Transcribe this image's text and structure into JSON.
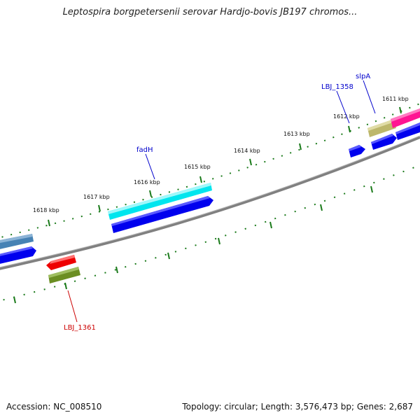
{
  "title": "Leptospira borgpetersenii serovar Hardjo-bovis JB197 chromos...",
  "footer": {
    "accession": "Accession: NC_008510",
    "summary": "Topology: circular; Length: 3,576,473 bp; Genes: 2,687"
  },
  "ticks": [
    {
      "label": "1611 kbp"
    },
    {
      "label": "1612 kbp"
    },
    {
      "label": "1613 kbp"
    },
    {
      "label": "1614 kbp"
    },
    {
      "label": "1615 kbp"
    },
    {
      "label": "1616 kbp"
    },
    {
      "label": "1617 kbp"
    },
    {
      "label": "1618 kbp"
    }
  ],
  "gene_labels": [
    {
      "name": "slpA",
      "color": "#0000cc"
    },
    {
      "name": "LBJ_1358",
      "color": "#0000cc"
    },
    {
      "name": "fadH",
      "color": "#0000cc"
    },
    {
      "name": "LBJ_1361",
      "color": "#cc0000"
    }
  ],
  "colors": {
    "backbone": "#808080",
    "tick": "#1a7a1a",
    "cds": "#0000ee",
    "cyan_feature": "#00e5ee",
    "steelblue_feature": "#4682b4",
    "khaki_feature": "#bdb76b",
    "pink_feature": "#ff1493",
    "red_feature": "#ee0000",
    "olive_feature": "#6b8e23"
  }
}
